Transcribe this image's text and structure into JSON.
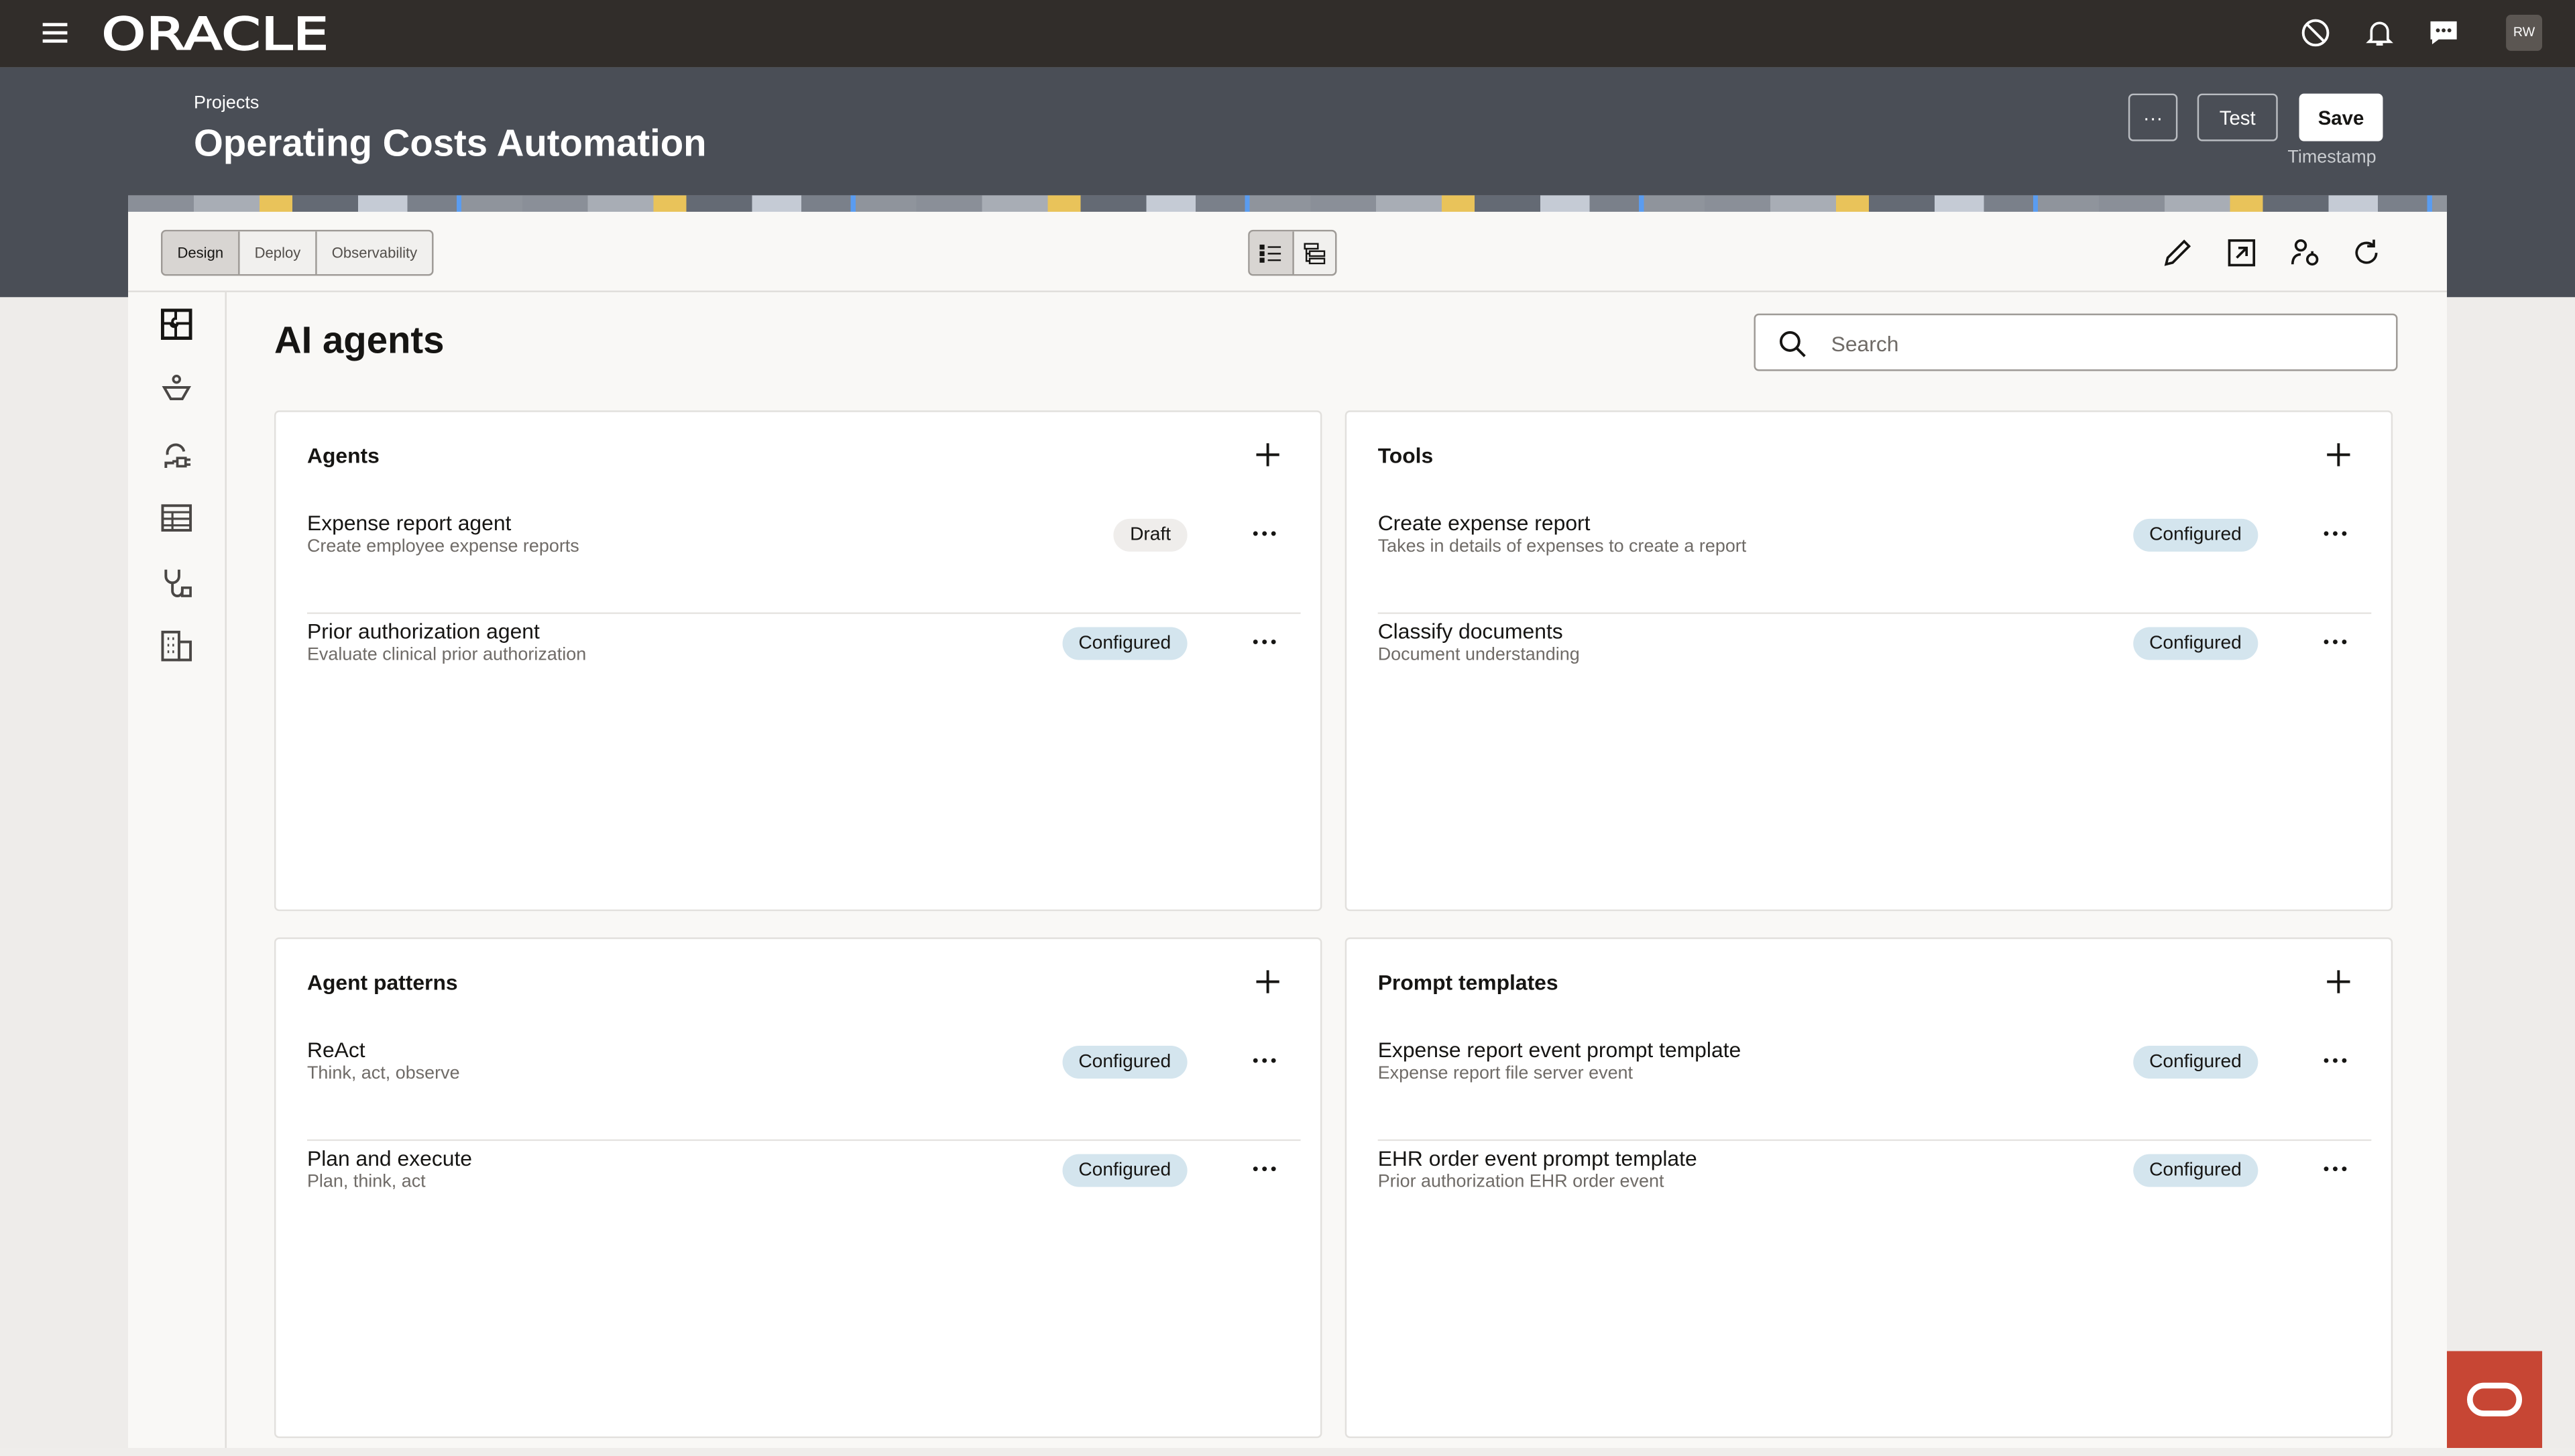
{
  "topbar": {
    "logo": "ORACLE",
    "avatar_initials": "RW",
    "icons": [
      "menu-icon",
      "timer-off-icon",
      "bell-icon",
      "chat-icon"
    ]
  },
  "header": {
    "breadcrumb": "Projects",
    "title": "Operating Costs Automation",
    "more_label": "···",
    "test_label": "Test",
    "save_label": "Save",
    "timestamp": "Timestamp"
  },
  "toolbar": {
    "tabs": [
      {
        "label": "Design",
        "selected": true
      },
      {
        "label": "Deploy",
        "selected": false
      },
      {
        "label": "Observability",
        "selected": false
      }
    ],
    "view_toggle": [
      "list-view-icon",
      "tree-view-icon"
    ],
    "actions": [
      "edit-icon",
      "open-external-icon",
      "user-settings-icon",
      "refresh-icon"
    ]
  },
  "sidebar": {
    "icons": [
      "puzzle-icon",
      "person-funnel-icon",
      "agent-plug-icon",
      "table-icon",
      "stethoscope-icon",
      "building-icon"
    ]
  },
  "main": {
    "title": "AI agents",
    "search": {
      "placeholder": "Search",
      "value": ""
    },
    "cards": [
      {
        "title": "Agents",
        "items": [
          {
            "title": "Expense report agent",
            "subtitle": "Create employee expense reports",
            "status": "Draft"
          },
          {
            "title": "Prior authorization agent",
            "subtitle": "Evaluate clinical prior authorization",
            "status": "Configured"
          }
        ]
      },
      {
        "title": "Tools",
        "items": [
          {
            "title": "Create expense report",
            "subtitle": "Takes in details of expenses to create a report",
            "status": "Configured"
          },
          {
            "title": "Classify documents",
            "subtitle": "Document understanding",
            "status": "Configured"
          }
        ]
      },
      {
        "title": "Agent patterns",
        "items": [
          {
            "title": "ReAct",
            "subtitle": "Think, act, observe",
            "status": "Configured"
          },
          {
            "title": "Plan and execute",
            "subtitle": "Plan, think, act",
            "status": "Configured"
          }
        ]
      },
      {
        "title": "Prompt templates",
        "items": [
          {
            "title": "Expense report event prompt template",
            "subtitle": "Expense report file server event",
            "status": "Configured"
          },
          {
            "title": "EHR order event prompt template",
            "subtitle": "Prior authorization EHR order event",
            "status": "Configured"
          }
        ]
      }
    ]
  },
  "colors": {
    "topbar": "#312d2a",
    "header_band": "#4a4e56",
    "configured_badge": "#d4e5ee",
    "draft_badge": "#efedeb",
    "oracle_red": "#c74634"
  }
}
